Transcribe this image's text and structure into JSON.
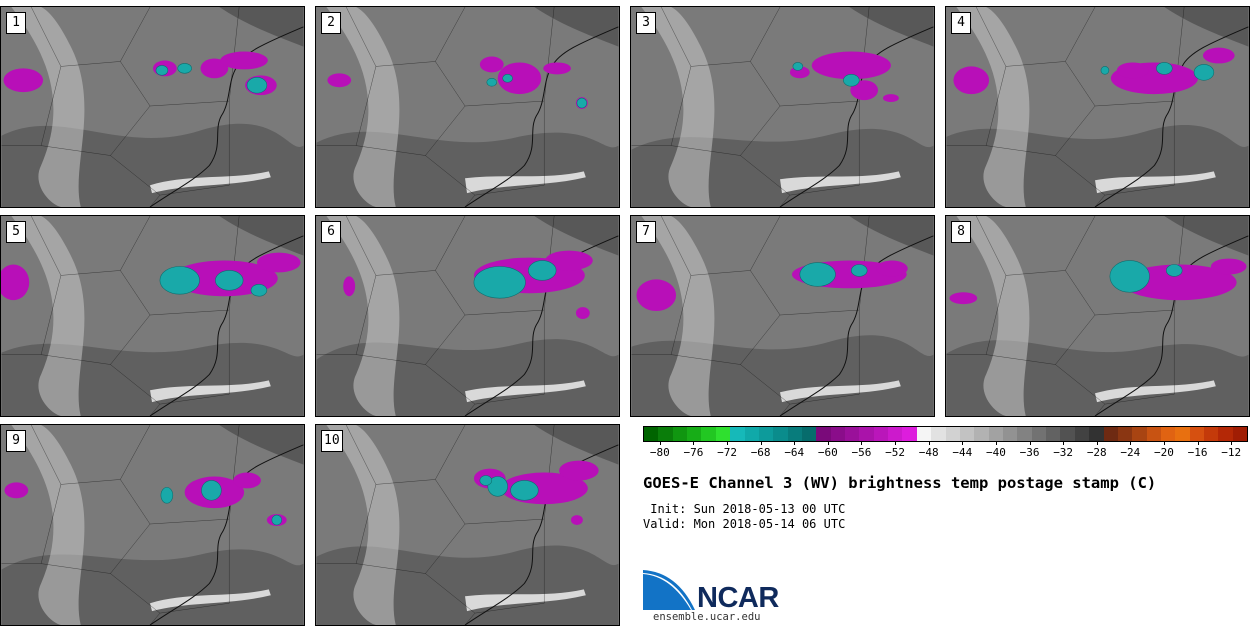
{
  "panels": [
    {
      "label": "1"
    },
    {
      "label": "2"
    },
    {
      "label": "3"
    },
    {
      "label": "4"
    },
    {
      "label": "5"
    },
    {
      "label": "6"
    },
    {
      "label": "7"
    },
    {
      "label": "8"
    },
    {
      "label": "9"
    },
    {
      "label": "10"
    }
  ],
  "colorbar": {
    "colors": [
      "#006400",
      "#0a7d0a",
      "#109610",
      "#17ad17",
      "#22c722",
      "#2fe02f",
      "#16b9b9",
      "#10a9a9",
      "#0d9b9b",
      "#0a8c8c",
      "#087c7c",
      "#066c6c",
      "#7a0a7a",
      "#8a0d8a",
      "#9a109a",
      "#aa13aa",
      "#ba16ba",
      "#cc1acc",
      "#dd1ddd",
      "#f5f5f5",
      "#e2e2e2",
      "#d2d2d2",
      "#c2c2c2",
      "#b2b2b2",
      "#a2a2a2",
      "#929292",
      "#828282",
      "#727272",
      "#626262",
      "#525252",
      "#424242",
      "#323232",
      "#6e2a12",
      "#8a3612",
      "#a84412",
      "#c85312",
      "#e06312",
      "#e87010",
      "#d65010",
      "#c43a0a",
      "#b42806",
      "#a01d04"
    ],
    "tick_labels": [
      "−80",
      "−76",
      "−72",
      "−68",
      "−64",
      "−60",
      "−56",
      "−52",
      "−48",
      "−44",
      "−40",
      "−36",
      "−32",
      "−28",
      "−24",
      "−20",
      "−16",
      "−12"
    ],
    "tick_values": [
      -80,
      -76,
      -72,
      -68,
      -64,
      -60,
      -56,
      -52,
      -48,
      -44,
      -40,
      -36,
      -32,
      -28,
      -24,
      -20,
      -16,
      -12
    ],
    "min": -82,
    "max": -10
  },
  "title": "GOES-E Channel 3 (WV) brightness temp postage stamp (C)",
  "init_line": " Init: Sun 2018-05-13 00 UTC",
  "valid_line": "Valid: Mon 2018-05-14 06 UTC",
  "logo": {
    "name": "NCAR",
    "url": "ensemble.ucar.edu",
    "colors": {
      "blue": "#1273c6",
      "navy": "#0f2a5c"
    }
  },
  "map_colors": {
    "background": "#7a7a7a",
    "dark": "#4a4a4a",
    "light": "#c8c8c8",
    "white": "#eeeeee",
    "magenta": "#b80fb8",
    "teal": "#19a9a9",
    "border": "#111111"
  }
}
